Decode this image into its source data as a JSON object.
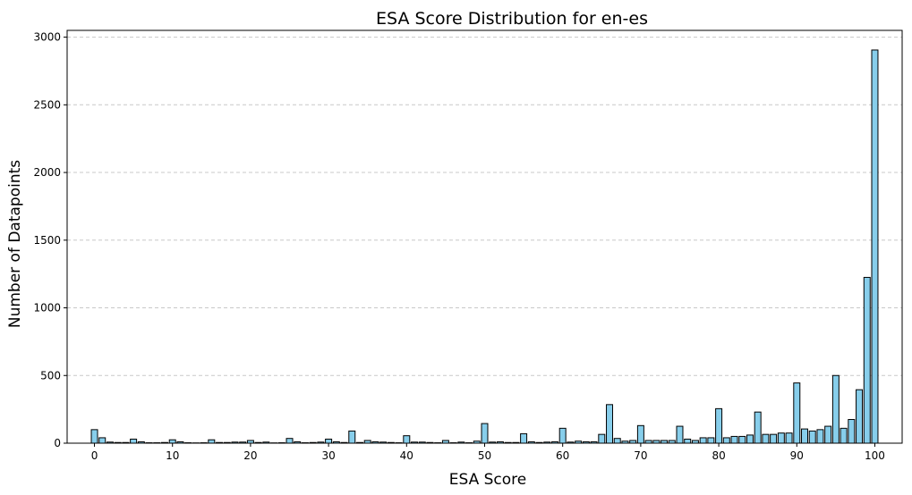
{
  "chart_data": {
    "type": "bar",
    "title": "ESA Score Distribution for en-es",
    "xlabel": "ESA Score",
    "ylabel": "Number of Datapoints",
    "x": [
      0,
      1,
      2,
      3,
      4,
      5,
      6,
      7,
      8,
      9,
      10,
      11,
      12,
      13,
      14,
      15,
      16,
      17,
      18,
      19,
      20,
      21,
      22,
      23,
      24,
      25,
      26,
      27,
      28,
      29,
      30,
      31,
      32,
      33,
      34,
      35,
      36,
      37,
      38,
      39,
      40,
      41,
      42,
      43,
      44,
      45,
      46,
      47,
      48,
      49,
      50,
      51,
      52,
      53,
      54,
      55,
      56,
      57,
      58,
      59,
      60,
      61,
      62,
      63,
      64,
      65,
      66,
      67,
      68,
      69,
      70,
      71,
      72,
      73,
      74,
      75,
      76,
      77,
      78,
      79,
      80,
      81,
      82,
      83,
      84,
      85,
      86,
      87,
      88,
      89,
      90,
      91,
      92,
      93,
      94,
      95,
      96,
      97,
      98,
      99,
      100
    ],
    "values": [
      100,
      40,
      8,
      5,
      5,
      30,
      10,
      3,
      3,
      5,
      25,
      10,
      3,
      2,
      3,
      25,
      5,
      5,
      8,
      8,
      20,
      5,
      8,
      2,
      3,
      35,
      10,
      3,
      5,
      8,
      30,
      10,
      5,
      90,
      5,
      20,
      10,
      8,
      5,
      3,
      55,
      8,
      8,
      5,
      3,
      20,
      3,
      8,
      3,
      15,
      145,
      8,
      10,
      5,
      5,
      70,
      10,
      5,
      8,
      10,
      110,
      8,
      15,
      10,
      10,
      65,
      285,
      35,
      15,
      20,
      130,
      20,
      20,
      20,
      20,
      125,
      30,
      20,
      40,
      40,
      255,
      40,
      50,
      50,
      60,
      230,
      65,
      65,
      75,
      75,
      445,
      105,
      90,
      100,
      125,
      500,
      110,
      175,
      395,
      1225,
      2905
    ],
    "xticks": [
      0,
      10,
      20,
      30,
      40,
      50,
      60,
      70,
      80,
      90,
      100
    ],
    "yticks": [
      0,
      500,
      1000,
      1500,
      2000,
      2500,
      3000
    ],
    "xlim": [
      -3.5,
      103.5
    ],
    "ylim": [
      0,
      3050
    ],
    "grid": "y-dashed",
    "bar_color": "#87CEEB",
    "edge_color": "#000000",
    "grid_color": "#c8c8c8"
  }
}
